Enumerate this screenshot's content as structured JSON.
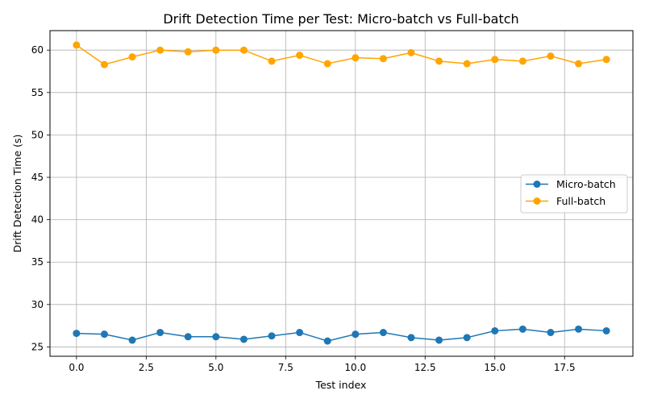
{
  "chart_data": {
    "type": "line",
    "title": "Drift Detection Time per Test: Micro-batch vs Full-batch",
    "xlabel": "Test index",
    "ylabel": "Drift Detection Time (s)",
    "xlim": [
      -0.95,
      19.95
    ],
    "ylim": [
      23.9,
      62.3
    ],
    "xticks": [
      0.0,
      2.5,
      5.0,
      7.5,
      10.0,
      12.5,
      15.0,
      17.5
    ],
    "xtick_labels": [
      "0.0",
      "2.5",
      "5.0",
      "7.5",
      "10.0",
      "12.5",
      "15.0",
      "17.5"
    ],
    "yticks": [
      25,
      30,
      35,
      40,
      45,
      50,
      55,
      60
    ],
    "ytick_labels": [
      "25",
      "30",
      "35",
      "40",
      "45",
      "50",
      "55",
      "60"
    ],
    "grid": true,
    "legend_position": "center-right",
    "x": [
      0,
      1,
      2,
      3,
      4,
      5,
      6,
      7,
      8,
      9,
      10,
      11,
      12,
      13,
      14,
      15,
      16,
      17,
      18,
      19
    ],
    "series": [
      {
        "name": "Micro-batch",
        "color": "#1f77b4",
        "values": [
          26.6,
          26.5,
          25.8,
          26.7,
          26.2,
          26.2,
          25.9,
          26.3,
          26.7,
          25.7,
          26.5,
          26.7,
          26.1,
          25.8,
          26.1,
          26.9,
          27.1,
          26.7,
          27.1,
          26.9
        ]
      },
      {
        "name": "Full-batch",
        "color": "#ffa500",
        "values": [
          60.6,
          58.3,
          59.2,
          60.0,
          59.8,
          60.0,
          60.0,
          58.7,
          59.4,
          58.4,
          59.1,
          59.0,
          59.7,
          58.7,
          58.4,
          58.9,
          58.7,
          59.3,
          58.4,
          58.9
        ]
      }
    ]
  }
}
